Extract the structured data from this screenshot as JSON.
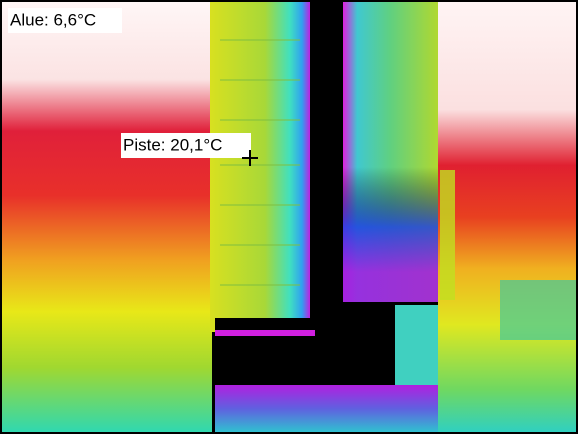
{
  "labels": {
    "area": "Alue: 6,6°C",
    "point": "Piste: 20,1°C"
  }
}
